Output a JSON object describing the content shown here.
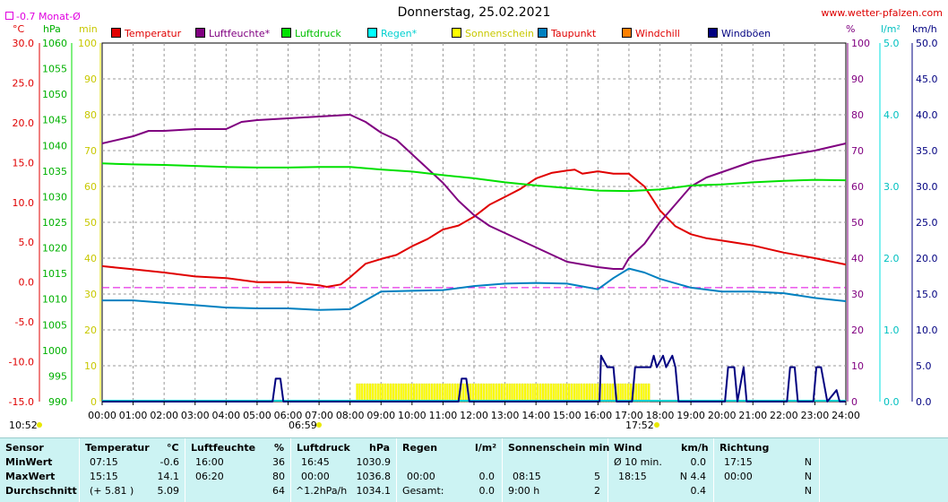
{
  "header": {
    "title": "Donnerstag, 25.02.2021",
    "site": "www.wetter-pfalzen.com",
    "month_avg": "-0.7 Monat-Ø",
    "unit_c": "°C",
    "unit_hpa": "hPa",
    "unit_min": "min",
    "unit_pct": "%",
    "unit_lm2": "l/m²",
    "unit_kmh": "km/h"
  },
  "legend": [
    {
      "label": "Temperatur",
      "color": "#e00000"
    },
    {
      "label": "Luftfeuchte*",
      "color": "#800080"
    },
    {
      "label": "Luftdruck",
      "color": "#00e000"
    },
    {
      "label": "Regen*",
      "color": "#00ffff"
    },
    {
      "label": "Sonnenschein",
      "color": "#ffff00"
    },
    {
      "label": "Taupunkt",
      "color": "#0080c0"
    },
    {
      "label": "Windchill",
      "color": "#ff8000"
    },
    {
      "label": "Windböen",
      "color": "#000080"
    }
  ],
  "markers": {
    "left_time": "10:52",
    "sunrise": "06:59",
    "sunset": "17:52"
  },
  "chart_data": {
    "type": "line",
    "x_ticks": [
      "00:00",
      "01:00",
      "02:00",
      "03:00",
      "04:00",
      "05:00",
      "06:00",
      "07:00",
      "08:00",
      "09:00",
      "10:00",
      "11:00",
      "12:00",
      "13:00",
      "14:00",
      "15:00",
      "16:00",
      "17:00",
      "18:00",
      "19:00",
      "20:00",
      "21:00",
      "22:00",
      "23:00",
      "24:00"
    ],
    "xlim_hours": [
      0,
      24
    ],
    "axes": {
      "temperature_c": {
        "ticks": [
          "30.0",
          "25.0",
          "20.0",
          "15.0",
          "10.0",
          "5.0",
          "0.0",
          "-5.0",
          "-10.0",
          "-15.0"
        ],
        "ylim": [
          -15,
          30
        ]
      },
      "pressure_hpa": {
        "ticks": [
          "1060",
          "1055",
          "1050",
          "1045",
          "1040",
          "1035",
          "1030",
          "1025",
          "1020",
          "1015",
          "1010",
          "1005",
          "1000",
          "995",
          "990"
        ],
        "ylim": [
          990,
          1060
        ]
      },
      "sunshine_min": {
        "ticks": [
          "100",
          "90",
          "80",
          "70",
          "60",
          "50",
          "40",
          "30",
          "20",
          "10",
          "0"
        ],
        "ylim": [
          0,
          100
        ]
      },
      "humidity_pct": {
        "ticks": [
          "100",
          "90",
          "80",
          "70",
          "60",
          "50",
          "40",
          "30",
          "20",
          "10",
          "0"
        ],
        "ylim": [
          0,
          100
        ]
      },
      "rain_lm2": {
        "ticks": [
          "5.0",
          "4.0",
          "3.0",
          "2.0",
          "1.0",
          "0.0"
        ],
        "ylim": [
          0,
          5
        ]
      },
      "wind_kmh": {
        "ticks": [
          "50.0",
          "45.0",
          "40.0",
          "35.0",
          "30.0",
          "25.0",
          "20.0",
          "15.0",
          "10.0",
          "5.0",
          "0.0"
        ],
        "ylim": [
          0,
          50
        ]
      }
    },
    "month_avg_temp_c": -0.7,
    "series": [
      {
        "name": "Temperatur",
        "axis": "temperature_c",
        "color": "#e00000",
        "points": [
          [
            0,
            2.0
          ],
          [
            1,
            1.6
          ],
          [
            2,
            1.2
          ],
          [
            3,
            0.7
          ],
          [
            4,
            0.5
          ],
          [
            5,
            0.0
          ],
          [
            6,
            0.0
          ],
          [
            7,
            -0.4
          ],
          [
            7.25,
            -0.6
          ],
          [
            7.7,
            -0.3
          ],
          [
            8,
            0.6
          ],
          [
            8.5,
            2.3
          ],
          [
            9,
            2.9
          ],
          [
            9.5,
            3.4
          ],
          [
            10,
            4.5
          ],
          [
            10.5,
            5.4
          ],
          [
            11,
            6.6
          ],
          [
            11.5,
            7.1
          ],
          [
            12,
            8.2
          ],
          [
            12.5,
            9.7
          ],
          [
            13,
            10.7
          ],
          [
            13.5,
            11.7
          ],
          [
            14,
            13.0
          ],
          [
            14.5,
            13.7
          ],
          [
            15,
            14.0
          ],
          [
            15.25,
            14.1
          ],
          [
            15.5,
            13.6
          ],
          [
            16,
            13.9
          ],
          [
            16.5,
            13.6
          ],
          [
            17,
            13.6
          ],
          [
            17.5,
            12.0
          ],
          [
            18,
            9.0
          ],
          [
            18.5,
            7.0
          ],
          [
            19,
            6.0
          ],
          [
            19.5,
            5.5
          ],
          [
            20,
            5.2
          ],
          [
            21,
            4.6
          ],
          [
            22,
            3.7
          ],
          [
            23,
            3.0
          ],
          [
            24,
            2.2
          ]
        ]
      },
      {
        "name": "Luftfeuchte*",
        "axis": "humidity_pct",
        "color": "#800080",
        "points": [
          [
            0,
            72
          ],
          [
            1,
            74
          ],
          [
            1.5,
            75.5
          ],
          [
            2,
            75.5
          ],
          [
            3,
            76
          ],
          [
            4,
            76
          ],
          [
            4.5,
            78
          ],
          [
            5,
            78.5
          ],
          [
            6,
            79
          ],
          [
            7,
            79.5
          ],
          [
            8,
            80
          ],
          [
            8.5,
            78
          ],
          [
            9,
            75
          ],
          [
            9.5,
            73
          ],
          [
            10,
            69
          ],
          [
            10.5,
            65
          ],
          [
            11,
            61
          ],
          [
            11.5,
            56
          ],
          [
            12,
            52
          ],
          [
            12.5,
            49
          ],
          [
            13,
            47
          ],
          [
            13.5,
            45
          ],
          [
            14,
            43
          ],
          [
            14.5,
            41
          ],
          [
            15,
            39
          ],
          [
            16,
            37.5
          ],
          [
            16.5,
            37
          ],
          [
            16.8,
            37
          ],
          [
            17,
            40
          ],
          [
            17.5,
            44
          ],
          [
            18,
            50
          ],
          [
            18.5,
            55
          ],
          [
            19,
            60
          ],
          [
            19.5,
            62.5
          ],
          [
            20,
            64
          ],
          [
            20.5,
            65.5
          ],
          [
            21,
            67
          ],
          [
            22,
            68.5
          ],
          [
            23,
            70
          ],
          [
            24,
            72
          ]
        ]
      },
      {
        "name": "Luftdruck",
        "axis": "pressure_hpa",
        "color": "#00e000",
        "points": [
          [
            0,
            1036.5
          ],
          [
            1,
            1036.3
          ],
          [
            2,
            1036.2
          ],
          [
            3,
            1036
          ],
          [
            4,
            1035.8
          ],
          [
            5,
            1035.7
          ],
          [
            6,
            1035.7
          ],
          [
            7,
            1035.8
          ],
          [
            8,
            1035.8
          ],
          [
            9,
            1035.3
          ],
          [
            10,
            1034.9
          ],
          [
            11,
            1034.2
          ],
          [
            12,
            1033.6
          ],
          [
            13,
            1032.8
          ],
          [
            14,
            1032.2
          ],
          [
            15,
            1031.7
          ],
          [
            16,
            1031.2
          ],
          [
            17,
            1031.1
          ],
          [
            18,
            1031.4
          ],
          [
            19,
            1032.2
          ],
          [
            20,
            1032.4
          ],
          [
            21,
            1032.8
          ],
          [
            22,
            1033.1
          ],
          [
            23,
            1033.3
          ],
          [
            24,
            1033.2
          ]
        ]
      },
      {
        "name": "Taupunkt",
        "axis": "temperature_c",
        "color": "#0080c0",
        "points": [
          [
            0,
            -2.3
          ],
          [
            1,
            -2.3
          ],
          [
            2,
            -2.6
          ],
          [
            3,
            -2.9
          ],
          [
            4,
            -3.2
          ],
          [
            5,
            -3.3
          ],
          [
            6,
            -3.3
          ],
          [
            7,
            -3.5
          ],
          [
            8,
            -3.4
          ],
          [
            9,
            -1.2
          ],
          [
            10,
            -1.1
          ],
          [
            11,
            -1.0
          ],
          [
            12,
            -0.5
          ],
          [
            13,
            -0.2
          ],
          [
            14,
            -0.1
          ],
          [
            15,
            -0.2
          ],
          [
            16,
            -0.9
          ],
          [
            16.5,
            0.5
          ],
          [
            17,
            1.7
          ],
          [
            17.5,
            1.2
          ],
          [
            18,
            0.4
          ],
          [
            19,
            -0.7
          ],
          [
            20,
            -1.2
          ],
          [
            21,
            -1.2
          ],
          [
            22,
            -1.4
          ],
          [
            23,
            -2.0
          ],
          [
            24,
            -2.4
          ]
        ]
      },
      {
        "name": "Windböen",
        "axis": "wind_kmh",
        "color": "#000080",
        "points": [
          [
            0,
            0
          ],
          [
            5.5,
            0
          ],
          [
            5.6,
            3.2
          ],
          [
            5.75,
            3.2
          ],
          [
            5.85,
            0
          ],
          [
            11.5,
            0
          ],
          [
            11.6,
            3.2
          ],
          [
            11.75,
            3.2
          ],
          [
            11.85,
            0
          ],
          [
            16.05,
            0
          ],
          [
            16.1,
            6.4
          ],
          [
            16.3,
            4.8
          ],
          [
            16.5,
            4.8
          ],
          [
            16.6,
            0
          ],
          [
            17.1,
            0
          ],
          [
            17.2,
            4.8
          ],
          [
            17.7,
            4.8
          ],
          [
            17.8,
            6.4
          ],
          [
            17.9,
            4.8
          ],
          [
            18.1,
            6.4
          ],
          [
            18.2,
            4.8
          ],
          [
            18.4,
            6.4
          ],
          [
            18.5,
            4.8
          ],
          [
            18.6,
            0
          ],
          [
            19.6,
            0
          ],
          [
            20.1,
            0
          ],
          [
            20.2,
            4.8
          ],
          [
            20.4,
            4.8
          ],
          [
            20.5,
            0
          ],
          [
            20.7,
            4.8
          ],
          [
            20.8,
            0
          ],
          [
            22.1,
            0
          ],
          [
            22.2,
            4.8
          ],
          [
            22.35,
            4.8
          ],
          [
            22.45,
            0
          ],
          [
            22.95,
            0
          ],
          [
            23.05,
            4.8
          ],
          [
            23.2,
            4.8
          ],
          [
            23.4,
            0
          ],
          [
            23.7,
            1.6
          ],
          [
            23.8,
            0
          ],
          [
            24,
            0
          ]
        ]
      }
    ],
    "sunshine_bars": {
      "axis": "sunshine_min",
      "color": "#ffff00",
      "start_hour": 8.2,
      "end_hour": 17.7,
      "value": 5
    }
  },
  "table": {
    "rowlabels": {
      "header": "Sensor",
      "min": "MinWert",
      "max": "MaxWert",
      "avg": "Durchschnitt"
    },
    "temp": {
      "header": "Temperatur",
      "unit": "°C",
      "min_time": "07:15",
      "min_val": "-0.6",
      "max_time": "15:15",
      "max_val": "14.1",
      "avg_note": "(+ 5.81 )",
      "avg_val": "5.09"
    },
    "hum": {
      "header": "Luftfeuchte",
      "unit": "%",
      "min_time": "16:00",
      "min_val": "36",
      "max_time": "06:20",
      "max_val": "80",
      "avg_val": "64"
    },
    "press": {
      "header": "Luftdruck",
      "unit": "hPa",
      "min_time": "16:45",
      "min_val": "1030.9",
      "max_time": "00:00",
      "max_val": "1036.8",
      "avg_note": "^1.2hPa/h",
      "avg_val": "1034.1"
    },
    "rain": {
      "header": "Regen",
      "unit": "l/m²",
      "max_time": "00:00",
      "max_val": "0.0",
      "avg_note": "Gesamt:",
      "avg_val": "0.0"
    },
    "sun": {
      "header": "Sonnenschein min",
      "max_time": "08:15",
      "max_val": "5",
      "avg_note": "9:00 h",
      "avg_val": "2"
    },
    "wind": {
      "header": "Wind",
      "unit": "km/h",
      "min_note": "Ø 10 min.",
      "min_val": "0.0",
      "max_time": "18:15",
      "max_val": "N 4.4",
      "avg_val": "0.4"
    },
    "dir": {
      "header": "Richtung",
      "min_time": "17:15",
      "min_val": "N",
      "max_time": "00:00",
      "max_val": "N",
      "avg_val": "N"
    }
  }
}
